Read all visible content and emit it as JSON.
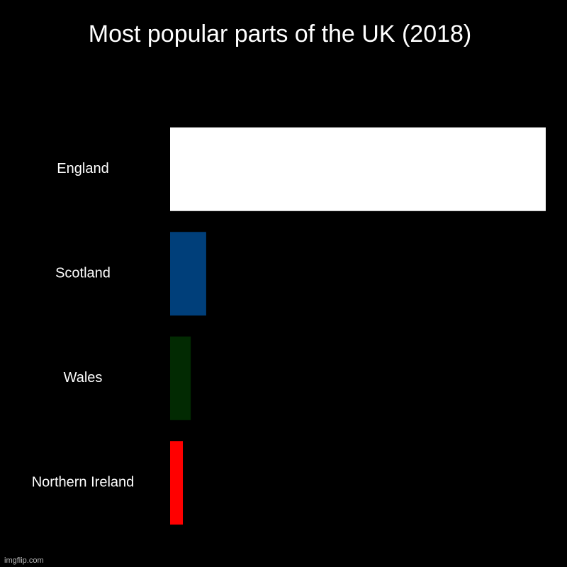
{
  "chart_data": {
    "type": "bar",
    "orientation": "horizontal",
    "title": "Most popular parts of the UK (2018)",
    "categories": [
      "England",
      "Scotland",
      "Wales",
      "Northern Ireland"
    ],
    "values": [
      100,
      9.6,
      5.5,
      3.4
    ],
    "colors": [
      "#ffffff",
      "#003f7a",
      "#022a02",
      "#ff0000"
    ]
  },
  "watermark": "imgflip.com"
}
